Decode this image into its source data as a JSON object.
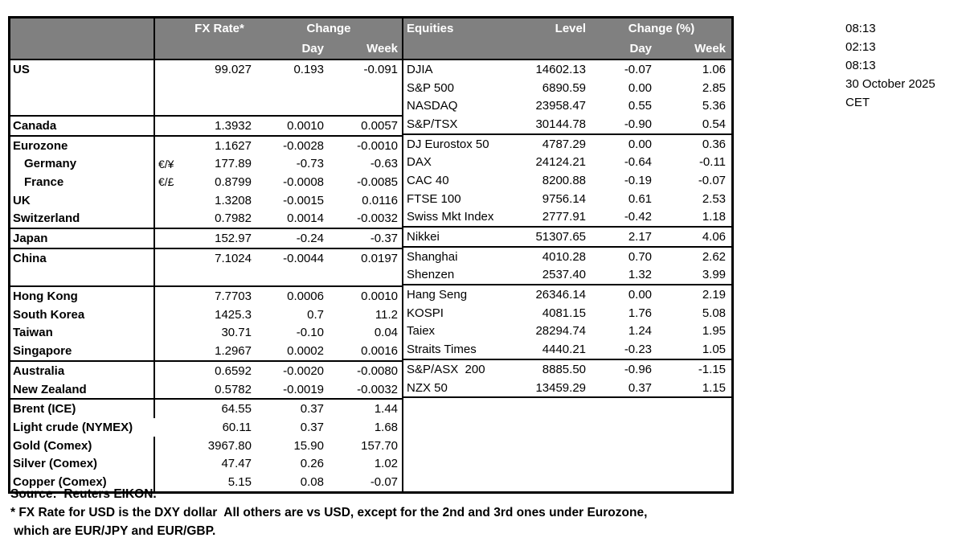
{
  "colors": {
    "header_bg": "#808080",
    "header_text": "#ffffff",
    "border": "#000000",
    "text": "#000000",
    "page_bg": "#ffffff"
  },
  "header": {
    "fx_rate": "FX Rate*",
    "change": "Change",
    "day": "Day",
    "week": "Week",
    "equities": "Equities",
    "level": "Level",
    "change_pct": "Change (%)"
  },
  "timestamps": [
    "08:13",
    "02:13",
    "08:13",
    "30 October 2025",
    "CET"
  ],
  "fx_rows": [
    {
      "label": "US",
      "pair": "",
      "rate": "99.027",
      "day": "0.193",
      "week": "-0.091"
    },
    {
      "label": "",
      "pair": "",
      "rate": "",
      "day": "",
      "week": ""
    },
    {
      "label": "",
      "pair": "",
      "rate": "",
      "day": "",
      "week": ""
    },
    {
      "label": "Canada",
      "pair": "",
      "rate": "1.3932",
      "day": "0.0010",
      "week": "0.0057",
      "top": true
    },
    {
      "label": "Eurozone",
      "pair": "",
      "rate": "1.1627",
      "day": "-0.0028",
      "week": "-0.0010",
      "top": true
    },
    {
      "label": "Germany",
      "pair": "€/¥",
      "rate": "177.89",
      "day": "-0.73",
      "week": "-0.63",
      "indent": true
    },
    {
      "label": "France",
      "pair": "€/£",
      "rate": "0.8799",
      "day": "-0.0008",
      "week": "-0.0085",
      "indent": true
    },
    {
      "label": "UK",
      "pair": "",
      "rate": "1.3208",
      "day": "-0.0015",
      "week": "0.0116"
    },
    {
      "label": "Switzerland",
      "pair": "",
      "rate": "0.7982",
      "day": "0.0014",
      "week": "-0.0032"
    },
    {
      "label": "Japan",
      "pair": "",
      "rate": "152.97",
      "day": "-0.24",
      "week": "-0.37",
      "top": true
    },
    {
      "label": "China",
      "pair": "",
      "rate": "7.1024",
      "day": "-0.0044",
      "week": "0.0197",
      "top": true
    },
    {
      "label": "",
      "pair": "",
      "rate": "",
      "day": "",
      "week": ""
    },
    {
      "label": "Hong Kong",
      "pair": "",
      "rate": "7.7703",
      "day": "0.0006",
      "week": "0.0010",
      "top": true
    },
    {
      "label": "South Korea",
      "pair": "",
      "rate": "1425.3",
      "day": "0.7",
      "week": "11.2"
    },
    {
      "label": "Taiwan",
      "pair": "",
      "rate": "30.71",
      "day": "-0.10",
      "week": "0.04"
    },
    {
      "label": "Singapore",
      "pair": "",
      "rate": "1.2967",
      "day": "0.0002",
      "week": "0.0016"
    },
    {
      "label": "Australia",
      "pair": "",
      "rate": "0.6592",
      "day": "-0.0020",
      "week": "-0.0080",
      "top": true
    },
    {
      "label": "New Zealand",
      "pair": "",
      "rate": "0.5782",
      "day": "-0.0019",
      "week": "-0.0032"
    },
    {
      "label": "Brent (ICE)",
      "pair": "",
      "rate": "64.55",
      "day": "0.37",
      "week": "1.44",
      "top": true
    },
    {
      "label": "Light crude (NYMEX)",
      "pair": "",
      "rate": "60.11",
      "day": "0.37",
      "week": "1.68",
      "no_divider": true
    },
    {
      "label": "Gold (Comex)",
      "pair": "",
      "rate": "3967.80",
      "day": "15.90",
      "week": "157.70"
    },
    {
      "label": "Silver (Comex)",
      "pair": "",
      "rate": "47.47",
      "day": "0.26",
      "week": "1.02"
    },
    {
      "label": "Copper (Comex)",
      "pair": "",
      "rate": "5.15",
      "day": "0.08",
      "week": "-0.07"
    }
  ],
  "equity_rows": [
    {
      "name": "DJIA",
      "level": "14602.13",
      "day": "-0.07",
      "week": "1.06"
    },
    {
      "name": "S&P 500",
      "level": "6890.59",
      "day": "0.00",
      "week": "2.85"
    },
    {
      "name": "NASDAQ",
      "level": "23958.47",
      "day": "0.55",
      "week": "5.36"
    },
    {
      "name": "S&P/TSX",
      "level": "30144.78",
      "day": "-0.90",
      "week": "0.54"
    },
    {
      "name": "DJ Eurostox 50",
      "level": "4787.29",
      "day": "0.00",
      "week": "0.36",
      "top": true
    },
    {
      "name": "DAX",
      "level": "24124.21",
      "day": "-0.64",
      "week": "-0.11"
    },
    {
      "name": "CAC 40",
      "level": "8200.88",
      "day": "-0.19",
      "week": "-0.07"
    },
    {
      "name": "FTSE 100",
      "level": "9756.14",
      "day": "0.61",
      "week": "2.53"
    },
    {
      "name": "Swiss Mkt Index",
      "level": "2777.91",
      "day": "-0.42",
      "week": "1.18"
    },
    {
      "name": "Nikkei",
      "level": "51307.65",
      "day": "2.17",
      "week": "4.06",
      "top": true
    },
    {
      "name": "Shanghai",
      "level": "4010.28",
      "day": "0.70",
      "week": "2.62",
      "top": true
    },
    {
      "name": "Shenzen",
      "level": "2537.40",
      "day": "1.32",
      "week": "3.99"
    },
    {
      "name": "Hang Seng",
      "level": "26346.14",
      "day": "0.00",
      "week": "2.19",
      "top": true
    },
    {
      "name": "KOSPI",
      "level": "4081.15",
      "day": "1.76",
      "week": "5.08"
    },
    {
      "name": "Taiex",
      "level": "28294.74",
      "day": "1.24",
      "week": "1.95"
    },
    {
      "name": "Straits Times",
      "level": "4440.21",
      "day": "-0.23",
      "week": "1.05"
    },
    {
      "name": "S&P/ASX  200",
      "level": "8885.50",
      "day": "-0.96",
      "week": "-1.15",
      "top": true
    },
    {
      "name": "NZX 50",
      "level": "13459.29",
      "day": "0.37",
      "week": "1.15"
    },
    {
      "name": "",
      "level": "",
      "day": "",
      "week": "",
      "top": true
    },
    {
      "name": "",
      "level": "",
      "day": "",
      "week": ""
    },
    {
      "name": "",
      "level": "",
      "day": "",
      "week": ""
    },
    {
      "name": "",
      "level": "",
      "day": "",
      "week": ""
    },
    {
      "name": "",
      "level": "",
      "day": "",
      "week": ""
    }
  ],
  "footnotes": [
    "Source:  Reuters EIKON.",
    "* FX Rate for USD is the DXY dollar  All others are vs USD, except for the 2nd and 3rd ones under Eurozone,",
    " which are EUR/JPY and EUR/GBP."
  ]
}
